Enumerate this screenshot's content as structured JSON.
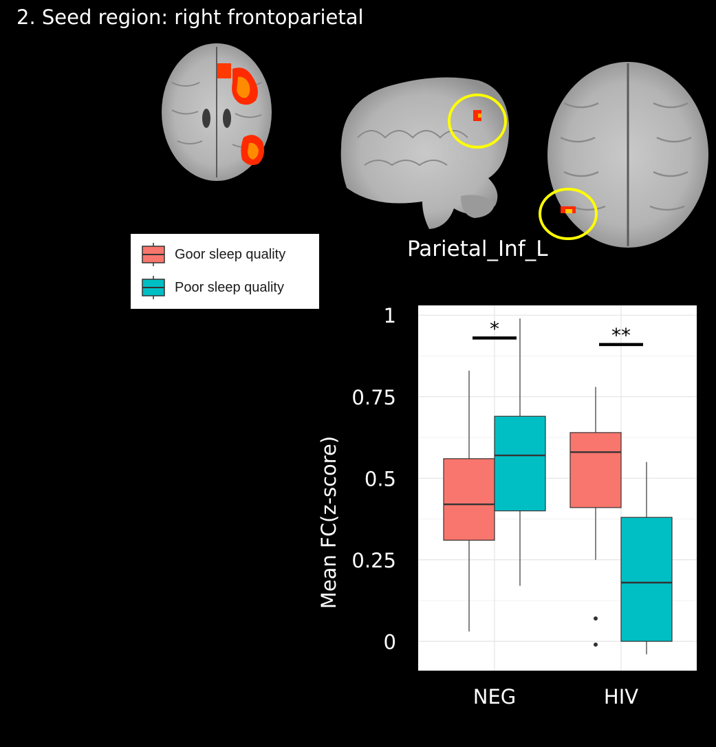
{
  "figure": {
    "panel_title": "2. Seed region: right frontoparietal",
    "region_label": "Parietal_Inf_L"
  },
  "legend": {
    "items": [
      {
        "label": "Goor sleep quality",
        "color": "#F8766D"
      },
      {
        "label": "Poor sleep quality",
        "color": "#00BFC4"
      }
    ]
  },
  "colors": {
    "highlight_circle": "#FFFF00",
    "activation": "#FF3300",
    "background": "#000000"
  },
  "chart_data": {
    "type": "box",
    "title": "",
    "xlabel": "",
    "ylabel": "Mean FC(z-score)",
    "ylim": [
      -0.09,
      1.03
    ],
    "yticks": [
      0,
      0.25,
      0.5,
      0.75,
      1
    ],
    "ytick_labels": [
      "0",
      "0.25",
      "0.5",
      "0.75",
      "1"
    ],
    "categories": [
      "NEG",
      "HIV"
    ],
    "grid": true,
    "series": [
      {
        "name": "Goor sleep quality",
        "color": "#F8766D",
        "boxes": [
          {
            "category": "NEG",
            "whisker_low": 0.03,
            "q1": 0.31,
            "median": 0.42,
            "q3": 0.56,
            "whisker_high": 0.83,
            "outliers": []
          },
          {
            "category": "HIV",
            "whisker_low": 0.25,
            "q1": 0.41,
            "median": 0.58,
            "q3": 0.64,
            "whisker_high": 0.78,
            "outliers": [
              0.07,
              -0.01
            ]
          }
        ]
      },
      {
        "name": "Poor sleep quality",
        "color": "#00BFC4",
        "boxes": [
          {
            "category": "NEG",
            "whisker_low": 0.17,
            "q1": 0.4,
            "median": 0.57,
            "q3": 0.69,
            "whisker_high": 0.99,
            "outliers": []
          },
          {
            "category": "HIV",
            "whisker_low": -0.04,
            "q1": 0.0,
            "median": 0.18,
            "q3": 0.38,
            "whisker_high": 0.55,
            "outliers": []
          }
        ]
      }
    ],
    "annotations": [
      {
        "category": "NEG",
        "text": "*",
        "y": 0.93
      },
      {
        "category": "HIV",
        "text": "**",
        "y": 0.91
      }
    ]
  }
}
